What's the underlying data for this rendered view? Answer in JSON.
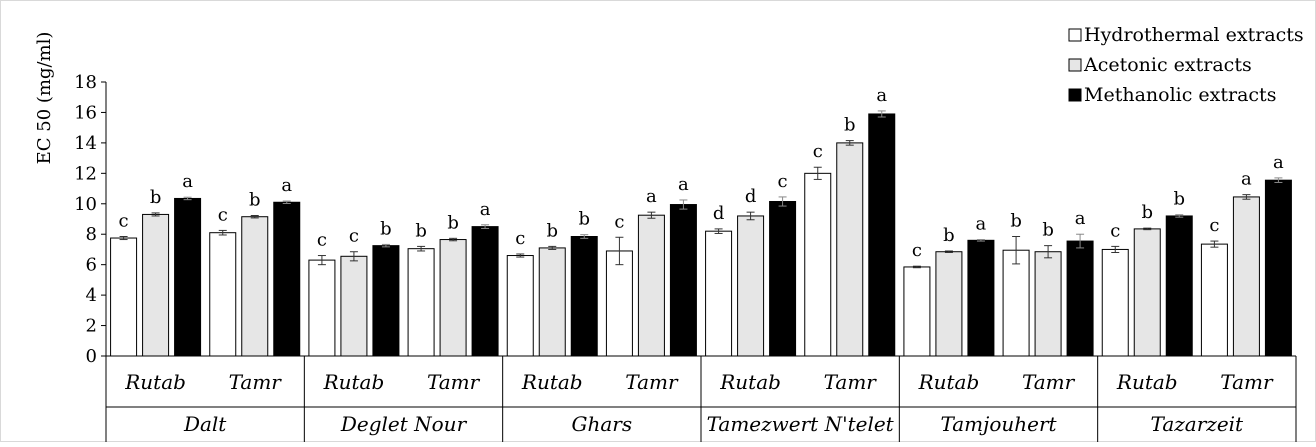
{
  "chart_data": {
    "type": "bar",
    "ylabel": "EC 50 (mg/ml)",
    "xlabel": "",
    "ylim": [
      0,
      18
    ],
    "yticks": [
      0,
      2,
      4,
      6,
      8,
      10,
      12,
      14,
      16,
      18
    ],
    "grid": false,
    "legend_position": "top-right",
    "groups": [
      {
        "variety": "Dalt",
        "types": [
          "Rutab",
          "Tamr"
        ]
      },
      {
        "variety": "Deglet Nour",
        "types": [
          "Rutab",
          "Tamr"
        ]
      },
      {
        "variety": "Ghars",
        "types": [
          "Rutab",
          "Tamr"
        ]
      },
      {
        "variety": "Tamezwert N'telet",
        "types": [
          "Rutab",
          "Tamr"
        ]
      },
      {
        "variety": "Tamjouhert",
        "types": [
          "Rutab",
          "Tamr"
        ]
      },
      {
        "variety": "Tazarzeit",
        "types": [
          "Rutab",
          "Tamr"
        ]
      }
    ],
    "series": [
      {
        "name": "Hydrothermal extracts",
        "color": "#ffffff",
        "values": [
          7.75,
          8.1,
          6.3,
          7.05,
          6.6,
          6.9,
          8.2,
          12.0,
          5.85,
          6.95,
          7.0,
          7.35
        ],
        "errors": [
          0.1,
          0.15,
          0.3,
          0.15,
          0.1,
          0.9,
          0.15,
          0.4,
          0.05,
          0.9,
          0.2,
          0.2
        ],
        "labels": [
          "c",
          "c",
          "c",
          "b",
          "c",
          "c",
          "d",
          "c",
          "c",
          "b",
          "c",
          "c"
        ]
      },
      {
        "name": "Acetonic extracts",
        "color": "#e6e6e6",
        "values": [
          9.3,
          9.15,
          6.55,
          7.65,
          7.1,
          9.25,
          9.2,
          14.0,
          6.85,
          6.85,
          8.35,
          10.45
        ],
        "errors": [
          0.1,
          0.08,
          0.3,
          0.08,
          0.1,
          0.2,
          0.25,
          0.15,
          0.05,
          0.4,
          0.05,
          0.15
        ],
        "labels": [
          "b",
          "b",
          "c",
          "b",
          "b",
          "a",
          "d",
          "b",
          "b",
          "b",
          "b",
          "a"
        ]
      },
      {
        "name": "Methanolic extracts",
        "color": "#000000",
        "values": [
          10.35,
          10.1,
          7.25,
          8.5,
          7.85,
          9.95,
          10.15,
          15.9,
          7.6,
          7.55,
          9.2,
          11.55
        ],
        "errors": [
          0.08,
          0.08,
          0.08,
          0.12,
          0.12,
          0.3,
          0.3,
          0.2,
          0.05,
          0.45,
          0.08,
          0.15
        ],
        "labels": [
          "a",
          "a",
          "b",
          "a",
          "b",
          "a",
          "c",
          "a",
          "a",
          "a",
          "b",
          "a"
        ]
      }
    ]
  }
}
